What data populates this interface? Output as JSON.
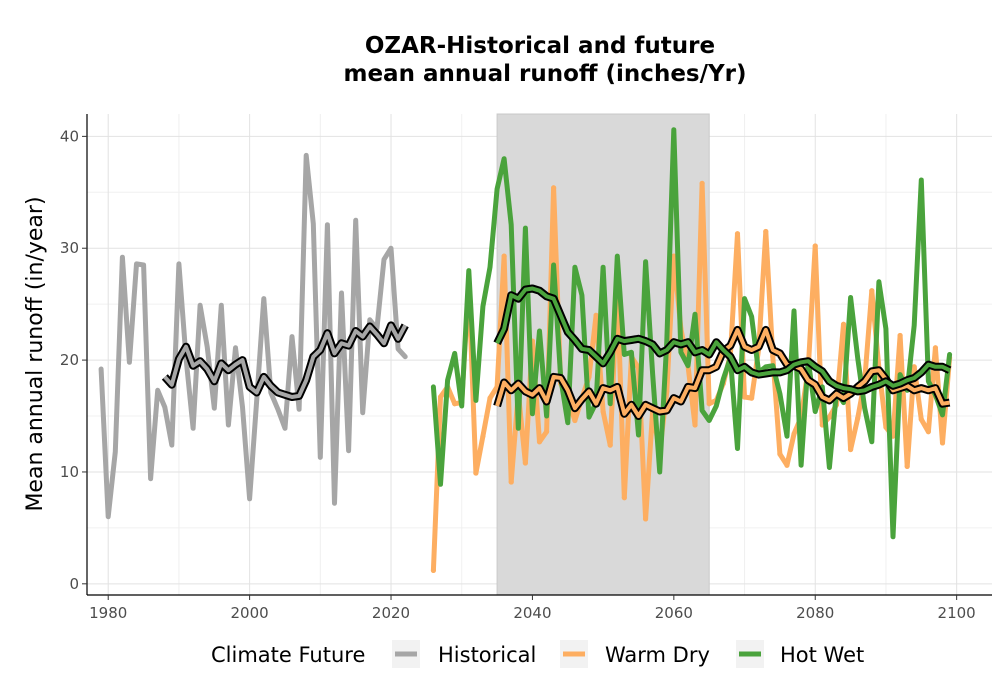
{
  "chart_data": {
    "type": "line",
    "title_line1": "OZAR-Historical and future",
    "title_line2": "mean annual runoff (inches/Yr)",
    "xlabel": "",
    "ylabel": "Mean annual runoff (in/year)",
    "xlim": [
      1977,
      2105
    ],
    "ylim": [
      -1,
      42
    ],
    "x_ticks": [
      1980,
      2000,
      2020,
      2040,
      2060,
      2080,
      2100
    ],
    "y_ticks": [
      0,
      10,
      20,
      30,
      40
    ],
    "grid": true,
    "shaded_period": [
      2035,
      2065
    ],
    "legend": {
      "title": "Climate Future",
      "placement": "bottom",
      "entries": [
        "Historical",
        "Warm Dry",
        "Hot Wet"
      ]
    },
    "colors": {
      "Historical": "#a6a6a6",
      "Warm Dry": "#fdae61",
      "Hot Wet": "#4aa33c",
      "smooth": "#000000",
      "shade": "#d9d9d9"
    },
    "series": [
      {
        "name": "Historical",
        "x": [
          1979,
          1980,
          1981,
          1982,
          1983,
          1984,
          1985,
          1986,
          1987,
          1988,
          1989,
          1990,
          1991,
          1992,
          1993,
          1994,
          1995,
          1996,
          1997,
          1998,
          1999,
          2000,
          2001,
          2002,
          2003,
          2004,
          2005,
          2006,
          2007,
          2008,
          2009,
          2010,
          2011,
          2012,
          2013,
          2014,
          2015,
          2016,
          2017,
          2018,
          2019,
          2020,
          2021,
          2022
        ],
        "values": [
          19.2,
          6.0,
          11.8,
          29.2,
          19.8,
          28.6,
          28.5,
          9.4,
          17.3,
          15.8,
          12.4,
          28.6,
          20.2,
          13.9,
          24.9,
          21.2,
          15.7,
          24.9,
          14.2,
          21.1,
          15.8,
          7.6,
          16.4,
          25.5,
          17.1,
          15.6,
          13.9,
          22.1,
          15.6,
          38.3,
          32.2,
          11.3,
          32.1,
          7.2,
          26.0,
          11.9,
          32.5,
          15.3,
          23.6,
          22.8,
          29.0,
          30.0,
          21.0,
          20.3
        ]
      },
      {
        "name": "Historical smooth",
        "x": [
          1988,
          1989,
          1990,
          1991,
          1992,
          1993,
          1994,
          1995,
          1996,
          1997,
          1998,
          1999,
          2000,
          2001,
          2002,
          2003,
          2004,
          2005,
          2006,
          2007,
          2008,
          2009,
          2010,
          2011,
          2012,
          2013,
          2014,
          2015,
          2016,
          2017,
          2018,
          2019,
          2020,
          2021,
          2022
        ],
        "values": [
          18.5,
          17.8,
          20.1,
          21.2,
          19.5,
          19.9,
          19.2,
          18.1,
          19.7,
          19.1,
          19.6,
          20.0,
          17.6,
          17.1,
          18.5,
          17.7,
          17.1,
          16.9,
          16.7,
          16.8,
          18.2,
          20.3,
          20.9,
          22.4,
          20.6,
          21.5,
          21.3,
          22.6,
          22.1,
          23.0,
          22.3,
          21.5,
          23.1,
          21.9,
          23.1
        ]
      },
      {
        "name": "Warm Dry",
        "x": [
          2026,
          2027,
          2028,
          2029,
          2030,
          2031,
          2032,
          2033,
          2034,
          2035,
          2036,
          2037,
          2038,
          2039,
          2040,
          2041,
          2042,
          2043,
          2044,
          2045,
          2046,
          2047,
          2048,
          2049,
          2050,
          2051,
          2052,
          2053,
          2054,
          2055,
          2056,
          2057,
          2058,
          2059,
          2060,
          2061,
          2062,
          2063,
          2064,
          2065,
          2066,
          2067,
          2068,
          2069,
          2070,
          2071,
          2072,
          2073,
          2074,
          2075,
          2076,
          2077,
          2078,
          2079,
          2080,
          2081,
          2082,
          2083,
          2084,
          2085,
          2086,
          2087,
          2088,
          2089,
          2090,
          2091,
          2092,
          2093,
          2094,
          2095,
          2096,
          2097,
          2098,
          2099
        ],
        "values": [
          1.2,
          16.7,
          17.6,
          16.1,
          16.2,
          26.8,
          9.9,
          13.2,
          16.6,
          17.6,
          29.3,
          9.1,
          17.1,
          10.8,
          21.7,
          12.7,
          13.6,
          35.4,
          17.9,
          16.5,
          14.6,
          16.6,
          18.5,
          24.0,
          15.4,
          12.4,
          26.4,
          7.7,
          20.3,
          19.3,
          5.8,
          15.4,
          11.8,
          17.2,
          29.3,
          22.8,
          19.5,
          14.2,
          35.8,
          16.1,
          16.4,
          17.9,
          20.5,
          31.3,
          16.7,
          16.6,
          21.0,
          31.5,
          20.3,
          11.6,
          10.6,
          13.4,
          14.9,
          19.2,
          30.2,
          14.2,
          14.9,
          16.0,
          23.2,
          12.0,
          14.8,
          18.2,
          26.2,
          19.3,
          14.0,
          13.2,
          22.2,
          10.5,
          19.4,
          14.7,
          13.6,
          21.1,
          12.6,
          20.2
        ]
      },
      {
        "name": "Warm Dry smooth",
        "x": [
          2035,
          2036,
          2037,
          2038,
          2039,
          2040,
          2041,
          2042,
          2043,
          2044,
          2045,
          2046,
          2047,
          2048,
          2049,
          2050,
          2051,
          2052,
          2053,
          2054,
          2055,
          2056,
          2057,
          2058,
          2059,
          2060,
          2061,
          2062,
          2063,
          2064,
          2065,
          2066,
          2067,
          2068,
          2069,
          2070,
          2071,
          2072,
          2073,
          2074,
          2075,
          2076,
          2077,
          2078,
          2079,
          2080,
          2081,
          2082,
          2083,
          2084,
          2085,
          2086,
          2087,
          2088,
          2089,
          2090,
          2091,
          2092,
          2093,
          2094,
          2095,
          2096,
          2097,
          2098,
          2099
        ],
        "values": [
          15.9,
          18.0,
          17.3,
          17.9,
          17.2,
          16.9,
          17.5,
          16.3,
          18.5,
          18.4,
          17.3,
          15.7,
          16.5,
          17.2,
          16.1,
          17.5,
          17.3,
          17.6,
          15.2,
          16.0,
          15.0,
          16.0,
          15.7,
          15.4,
          15.5,
          16.6,
          16.3,
          17.6,
          17.5,
          19.1,
          19.1,
          19.4,
          20.8,
          21.3,
          22.7,
          21.2,
          20.9,
          21.2,
          22.7,
          20.9,
          20.6,
          19.6,
          19.5,
          19.2,
          18.2,
          17.8,
          16.7,
          16.4,
          17.0,
          16.6,
          17.0,
          17.6,
          18.1,
          19.0,
          19.1,
          18.3,
          17.3,
          17.5,
          17.7,
          17.3,
          17.5,
          17.3,
          17.5,
          16.1,
          16.2
        ]
      },
      {
        "name": "Hot Wet",
        "x": [
          2026,
          2027,
          2028,
          2029,
          2030,
          2031,
          2032,
          2033,
          2034,
          2035,
          2036,
          2037,
          2038,
          2039,
          2040,
          2041,
          2042,
          2043,
          2044,
          2045,
          2046,
          2047,
          2048,
          2049,
          2050,
          2051,
          2052,
          2053,
          2054,
          2055,
          2056,
          2057,
          2058,
          2059,
          2060,
          2061,
          2062,
          2063,
          2064,
          2065,
          2066,
          2067,
          2068,
          2069,
          2070,
          2071,
          2072,
          2073,
          2074,
          2075,
          2076,
          2077,
          2078,
          2079,
          2080,
          2081,
          2082,
          2083,
          2084,
          2085,
          2086,
          2087,
          2088,
          2089,
          2090,
          2091,
          2092,
          2093,
          2094,
          2095,
          2096,
          2097,
          2098,
          2099
        ],
        "values": [
          17.6,
          8.9,
          18.2,
          20.6,
          15.9,
          28.0,
          16.4,
          24.8,
          28.3,
          35.3,
          38.0,
          32.1,
          13.9,
          31.8,
          15.2,
          22.6,
          15.0,
          28.5,
          18.4,
          14.4,
          28.3,
          25.8,
          14.9,
          16.2,
          28.3,
          16.1,
          29.3,
          20.5,
          20.7,
          13.3,
          28.8,
          18.8,
          10.0,
          21.7,
          40.6,
          20.7,
          19.5,
          24.1,
          15.5,
          14.6,
          15.9,
          18.3,
          20.2,
          12.1,
          25.5,
          23.9,
          18.9,
          19.4,
          19.5,
          17.0,
          13.2,
          24.4,
          10.6,
          20.0,
          15.4,
          17.6,
          10.4,
          17.2,
          16.2,
          25.6,
          20.2,
          15.7,
          12.7,
          27.0,
          22.8,
          4.2,
          18.7,
          17.3,
          23.1,
          36.1,
          18.1,
          16.9,
          15.1,
          20.5
        ]
      },
      {
        "name": "Hot Wet smooth",
        "x": [
          2035,
          2036,
          2037,
          2038,
          2039,
          2040,
          2041,
          2042,
          2043,
          2044,
          2045,
          2046,
          2047,
          2048,
          2049,
          2050,
          2051,
          2052,
          2053,
          2054,
          2055,
          2056,
          2057,
          2058,
          2059,
          2060,
          2061,
          2062,
          2063,
          2064,
          2065,
          2066,
          2067,
          2068,
          2069,
          2070,
          2071,
          2072,
          2073,
          2074,
          2075,
          2076,
          2077,
          2078,
          2079,
          2080,
          2081,
          2082,
          2083,
          2084,
          2085,
          2086,
          2087,
          2088,
          2089,
          2090,
          2091,
          2092,
          2093,
          2094,
          2095,
          2096,
          2097,
          2098,
          2099
        ],
        "values": [
          21.5,
          22.8,
          25.8,
          25.5,
          26.3,
          26.4,
          26.2,
          25.7,
          25.5,
          24.0,
          22.5,
          21.8,
          21.0,
          20.9,
          20.3,
          19.7,
          20.7,
          21.9,
          21.7,
          21.8,
          21.9,
          21.7,
          21.4,
          20.6,
          20.9,
          21.6,
          21.4,
          21.6,
          20.7,
          20.9,
          20.5,
          21.6,
          20.9,
          20.3,
          19.1,
          19.4,
          18.9,
          18.7,
          18.8,
          18.9,
          18.9,
          19.1,
          19.6,
          19.8,
          19.9,
          19.4,
          19.0,
          18.1,
          17.7,
          17.5,
          17.4,
          17.2,
          17.3,
          17.6,
          17.8,
          18.1,
          17.7,
          17.9,
          18.2,
          18.4,
          18.9,
          19.6,
          19.4,
          19.4,
          19.1
        ]
      }
    ]
  }
}
